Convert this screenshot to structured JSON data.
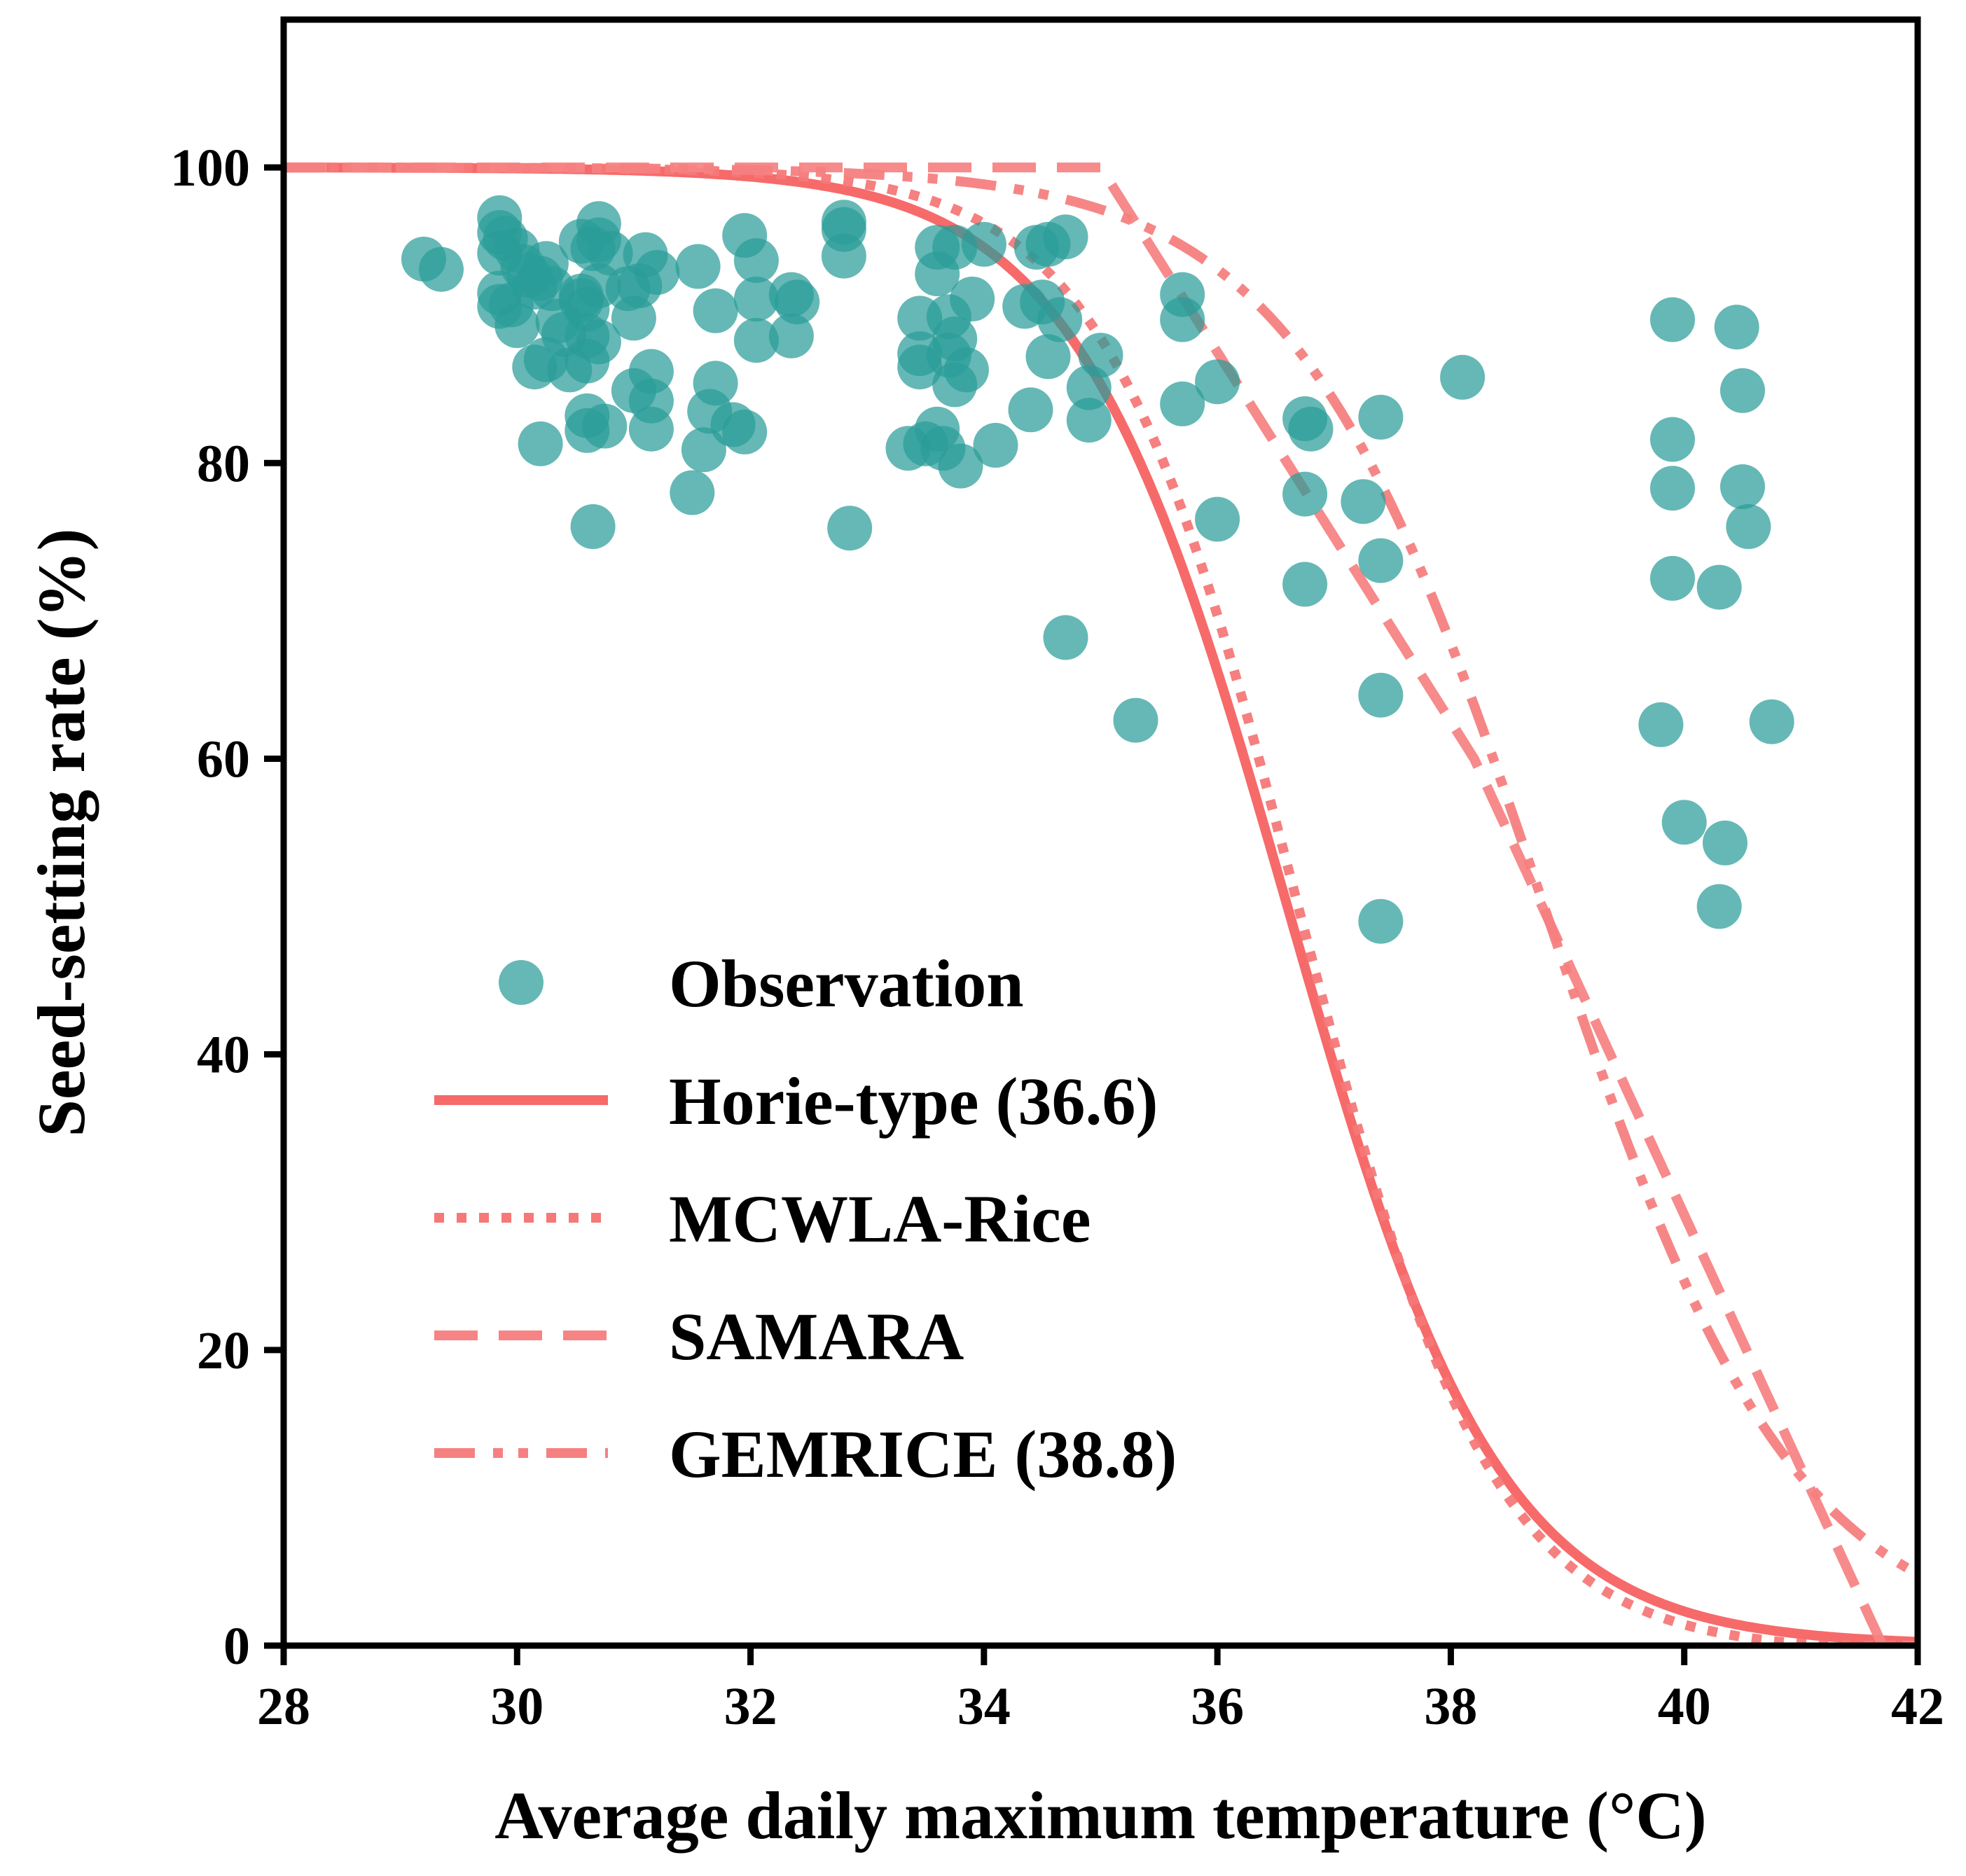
{
  "chart_data": {
    "type": "scatter",
    "xlabel": "Average daily maximum temperature (°C)",
    "ylabel": "Seed-setting rate (%)",
    "xlim": [
      28,
      42
    ],
    "ylim": [
      0,
      110
    ],
    "xticks": [
      28,
      30,
      32,
      34,
      36,
      38,
      40,
      42
    ],
    "yticks": [
      0,
      20,
      40,
      60,
      80,
      100
    ],
    "grid": false,
    "legend_position": "lower-left",
    "colors": {
      "observation": "#2a9d99",
      "horie": "#f76a6a",
      "mcwla": "#f67878",
      "samara": "#f78484",
      "gemrice": "#f68080"
    },
    "legend": [
      {
        "key": "observation",
        "label": "Observation",
        "style": "marker"
      },
      {
        "key": "horie",
        "label": "Horie-type (36.6)",
        "style": "solid"
      },
      {
        "key": "mcwla",
        "label": "MCWLA-Rice",
        "style": "dotted"
      },
      {
        "key": "samara",
        "label": "SAMARA",
        "style": "dashed"
      },
      {
        "key": "gemrice",
        "label": "GEMRICE (38.8)",
        "style": "dashdotdot"
      }
    ],
    "observation": [
      [
        29.2,
        93.8
      ],
      [
        29.35,
        93.1
      ],
      [
        29.85,
        96.6
      ],
      [
        29.85,
        95.6
      ],
      [
        29.9,
        95.2
      ],
      [
        29.85,
        94.2
      ],
      [
        29.85,
        91.5
      ],
      [
        29.85,
        90.6
      ],
      [
        29.95,
        90.7
      ],
      [
        30.0,
        94.4
      ],
      [
        30.05,
        93.3
      ],
      [
        30.0,
        89.3
      ],
      [
        30.1,
        92.7
      ],
      [
        30.15,
        91.9
      ],
      [
        30.15,
        86.5
      ],
      [
        30.2,
        92.5
      ],
      [
        30.2,
        81.3
      ],
      [
        30.25,
        93.5
      ],
      [
        30.25,
        87.0
      ],
      [
        30.3,
        91.8
      ],
      [
        30.35,
        89.6
      ],
      [
        30.4,
        88.7
      ],
      [
        30.45,
        86.3
      ],
      [
        30.55,
        95.0
      ],
      [
        30.55,
        91.3
      ],
      [
        30.55,
        91.0
      ],
      [
        30.6,
        90.4
      ],
      [
        30.6,
        88.6
      ],
      [
        30.6,
        86.9
      ],
      [
        30.6,
        83.2
      ],
      [
        30.6,
        82.2
      ],
      [
        30.65,
        75.7
      ],
      [
        30.65,
        94.5
      ],
      [
        30.7,
        96.2
      ],
      [
        30.7,
        95.1
      ],
      [
        30.7,
        92.0
      ],
      [
        30.7,
        88.2
      ],
      [
        30.75,
        82.5
      ],
      [
        30.8,
        94.2
      ],
      [
        30.95,
        91.8
      ],
      [
        31.0,
        89.8
      ],
      [
        31.0,
        84.9
      ],
      [
        31.05,
        92.0
      ],
      [
        31.1,
        94.1
      ],
      [
        31.15,
        86.2
      ],
      [
        31.15,
        84.2
      ],
      [
        31.15,
        82.3
      ],
      [
        31.2,
        92.9
      ],
      [
        31.5,
        78.0
      ],
      [
        31.55,
        93.3
      ],
      [
        31.6,
        80.9
      ],
      [
        31.65,
        83.5
      ],
      [
        31.7,
        90.3
      ],
      [
        31.7,
        85.4
      ],
      [
        31.85,
        82.6
      ],
      [
        31.95,
        95.4
      ],
      [
        31.95,
        82.1
      ],
      [
        32.05,
        93.7
      ],
      [
        32.05,
        91.1
      ],
      [
        32.05,
        88.3
      ],
      [
        32.35,
        91.4
      ],
      [
        32.35,
        88.6
      ],
      [
        32.4,
        90.9
      ],
      [
        32.8,
        96.3
      ],
      [
        32.8,
        95.8
      ],
      [
        32.8,
        94.0
      ],
      [
        32.85,
        75.6
      ],
      [
        33.35,
        81.0
      ],
      [
        33.45,
        89.8
      ],
      [
        33.45,
        87.4
      ],
      [
        33.45,
        86.5
      ],
      [
        33.5,
        81.3
      ],
      [
        33.6,
        94.6
      ],
      [
        33.6,
        92.8
      ],
      [
        33.6,
        82.3
      ],
      [
        33.65,
        81.0
      ],
      [
        33.7,
        89.9
      ],
      [
        33.7,
        87.3
      ],
      [
        33.75,
        94.6
      ],
      [
        33.75,
        88.4
      ],
      [
        33.75,
        85.3
      ],
      [
        33.8,
        79.8
      ],
      [
        33.85,
        86.3
      ],
      [
        33.9,
        91.1
      ],
      [
        34.0,
        94.8
      ],
      [
        34.1,
        81.2
      ],
      [
        34.35,
        90.6
      ],
      [
        34.4,
        83.6
      ],
      [
        34.45,
        94.6
      ],
      [
        34.5,
        90.9
      ],
      [
        34.55,
        94.8
      ],
      [
        34.55,
        87.2
      ],
      [
        34.65,
        89.7
      ],
      [
        34.7,
        95.3
      ],
      [
        34.7,
        68.2
      ],
      [
        34.9,
        85.1
      ],
      [
        34.9,
        82.9
      ],
      [
        35.0,
        87.3
      ],
      [
        35.3,
        62.6
      ],
      [
        35.7,
        91.4
      ],
      [
        35.7,
        89.7
      ],
      [
        35.7,
        84.0
      ],
      [
        36.0,
        85.5
      ],
      [
        36.0,
        76.2
      ],
      [
        36.75,
        83.0
      ],
      [
        36.75,
        77.9
      ],
      [
        36.75,
        71.8
      ],
      [
        36.8,
        82.3
      ],
      [
        37.25,
        77.4
      ],
      [
        37.4,
        83.1
      ],
      [
        37.4,
        73.4
      ],
      [
        37.4,
        64.3
      ],
      [
        37.4,
        49.0
      ],
      [
        38.1,
        85.8
      ],
      [
        39.8,
        62.3
      ],
      [
        39.9,
        89.7
      ],
      [
        39.9,
        81.6
      ],
      [
        39.9,
        78.3
      ],
      [
        39.9,
        72.2
      ],
      [
        40.0,
        55.7
      ],
      [
        40.3,
        71.6
      ],
      [
        40.3,
        50.0
      ],
      [
        40.35,
        54.3
      ],
      [
        40.45,
        89.2
      ],
      [
        40.5,
        84.9
      ],
      [
        40.5,
        78.4
      ],
      [
        40.55,
        75.7
      ],
      [
        40.75,
        62.5
      ]
    ],
    "curves": [
      {
        "key": "horie",
        "label": "Horie-type (36.6)",
        "model": "logistic",
        "t50": 36.6,
        "slope": 1.1
      },
      {
        "key": "mcwla",
        "label": "MCWLA-Rice",
        "model": "logistic_capped",
        "t50": 36.7,
        "slope": 1.2,
        "hi": 41.2
      },
      {
        "key": "samara",
        "label": "SAMARA",
        "model": "piecewise_linear",
        "points": [
          [
            28,
            100
          ],
          [
            35,
            100
          ],
          [
            38.2,
            60
          ],
          [
            41.7,
            0
          ]
        ]
      },
      {
        "key": "gemrice",
        "label": "GEMRICE (38.8)",
        "model": "logistic",
        "t50": 38.8,
        "slope": 0.93
      }
    ]
  }
}
